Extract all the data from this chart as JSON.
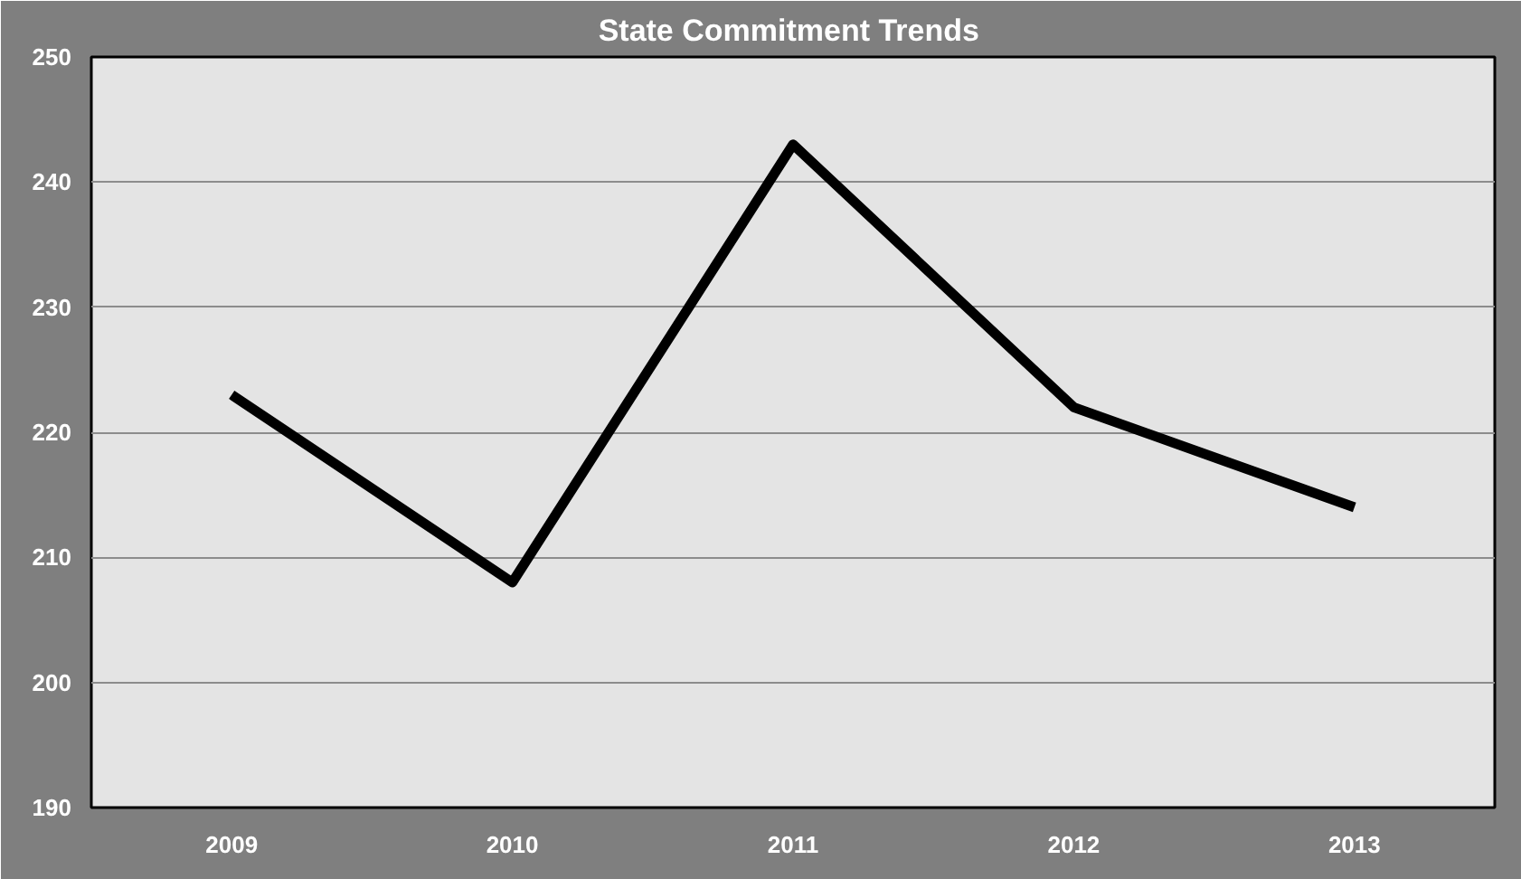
{
  "chart_data": {
    "type": "line",
    "title": "State Commitment  Trends",
    "categories": [
      "2009",
      "2010",
      "2011",
      "2012",
      "2013"
    ],
    "series": [
      {
        "color": "#000000",
        "values": [
          223,
          208,
          243,
          222,
          214
        ]
      }
    ],
    "ylim": [
      190,
      250
    ],
    "yticks": [
      190,
      200,
      210,
      220,
      230,
      240,
      250
    ],
    "grid": "y"
  }
}
